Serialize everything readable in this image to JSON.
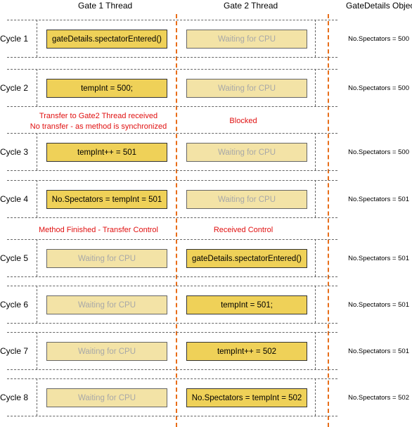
{
  "headers": {
    "gate1": "Gate 1 Thread",
    "gate2": "Gate 2 Thread",
    "object": "GateDetails Object"
  },
  "cycles": [
    {
      "label": "Cycle 1",
      "gate1": "gateDetails.spectatorEntered()",
      "gate2": "Waiting for CPU",
      "object": "No.Spectators = 500"
    },
    {
      "label": "Cycle 2",
      "gate1": "tempInt = 500;",
      "gate2": "Waiting for CPU",
      "object": "No.Spectators = 500"
    },
    {
      "label": "Cycle 3",
      "gate1": "tempInt++ = 501",
      "gate2": "Waiting for CPU",
      "object": "No.Spectators = 500"
    },
    {
      "label": "Cycle 4",
      "gate1": "No.Spectators  = tempInt = 501",
      "gate2": "Waiting for CPU",
      "object": "No.Spectators = 501"
    },
    {
      "label": "Cycle 5",
      "gate1": "Waiting for CPU",
      "gate2": "gateDetails.spectatorEntered()",
      "object": "No.Spectators = 501"
    },
    {
      "label": "Cycle 6",
      "gate1": "Waiting for CPU",
      "gate2": "tempInt = 501;",
      "object": "No.Spectators = 501"
    },
    {
      "label": "Cycle 7",
      "gate1": "Waiting for CPU",
      "gate2": "tempInt++ = 502",
      "object": "No.Spectators = 501"
    },
    {
      "label": "Cycle 8",
      "gate1": "Waiting for CPU",
      "gate2": "No.Spectators  = tempInt = 502",
      "object": "No.Spectators = 502"
    }
  ],
  "notes": {
    "transfer_line1": "Transfer to Gate2 Thread received",
    "transfer_line2": "No transfer - as method is synchronized",
    "blocked": "Blocked",
    "method_finished": "Method Finished - Transfer Control",
    "received_control": "Received Control"
  },
  "colors": {
    "active": "#efd158",
    "waiting": "#f3e3a6",
    "waiting_text": "#a8a8a8",
    "divider": "#e86e1a",
    "note": "#e01010"
  }
}
